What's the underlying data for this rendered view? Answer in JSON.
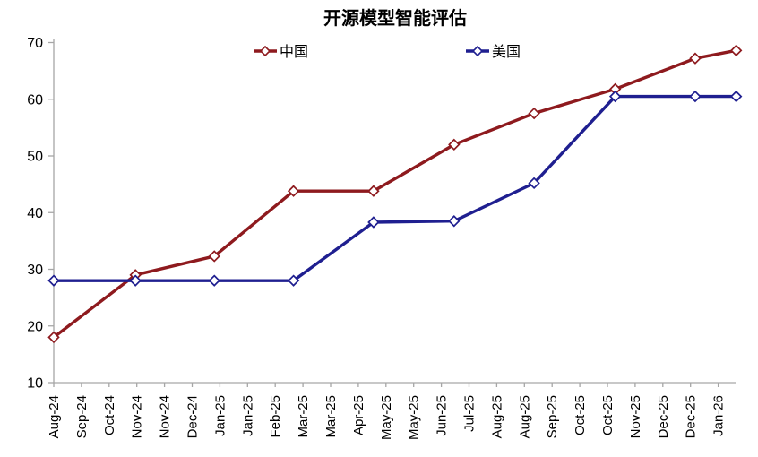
{
  "chart_data": {
    "type": "line",
    "title": "开源模型智能评估",
    "xlabel": "",
    "ylabel": "",
    "ylim": [
      10,
      70
    ],
    "y_ticks": [
      10,
      20,
      30,
      40,
      50,
      60,
      70
    ],
    "grid": false,
    "legend_position": "top",
    "axis_color": "#a6a6a6",
    "marker": "open-diamond",
    "x_unit": "tick-index (labels every ~3 weeks, Aug-24 to Jan-26)",
    "x_tick_labels": [
      "Aug-24",
      "Sep-24",
      "Oct-24",
      "Nov-24",
      "Nov-24",
      "Dec-24",
      "Jan-25",
      "Jan-25",
      "Feb-25",
      "Mar-25",
      "Mar-25",
      "Apr-25",
      "May-25",
      "May-25",
      "Jun-25",
      "Jul-25",
      "Aug-25",
      "Aug-25",
      "Sep-25",
      "Oct-25",
      "Oct-25",
      "Nov-25",
      "Dec-25",
      "Dec-25",
      "Jan-26"
    ],
    "series": [
      {
        "name": "中国",
        "color": "#8e1a1e",
        "points": [
          {
            "x": 0.0,
            "y": 18.0,
            "label": "Aug-24"
          },
          {
            "x": 2.95,
            "y": 29.0,
            "label": "Nov-24"
          },
          {
            "x": 5.8,
            "y": 32.3,
            "label": "Jan-25"
          },
          {
            "x": 8.66,
            "y": 43.8,
            "label": "Feb-25"
          },
          {
            "x": 11.55,
            "y": 43.8,
            "label": "Apr-25"
          },
          {
            "x": 14.46,
            "y": 52.0,
            "label": "Jun-25"
          },
          {
            "x": 17.35,
            "y": 57.5,
            "label": "Aug-25"
          },
          {
            "x": 20.28,
            "y": 61.8,
            "label": "Oct-25"
          },
          {
            "x": 23.17,
            "y": 67.2,
            "label": "Dec-25"
          },
          {
            "x": 24.65,
            "y": 68.6,
            "label": "Jan-26"
          }
        ]
      },
      {
        "name": "美国",
        "color": "#1f1f90",
        "points": [
          {
            "x": 0.0,
            "y": 28.0,
            "label": "Aug-24"
          },
          {
            "x": 2.95,
            "y": 28.0,
            "label": "Nov-24"
          },
          {
            "x": 5.8,
            "y": 28.0,
            "label": "Jan-25"
          },
          {
            "x": 8.66,
            "y": 28.0,
            "label": "Feb-25"
          },
          {
            "x": 11.55,
            "y": 38.3,
            "label": "Apr-25"
          },
          {
            "x": 14.46,
            "y": 38.5,
            "label": "Jun-25"
          },
          {
            "x": 17.35,
            "y": 45.2,
            "label": "Aug-25"
          },
          {
            "x": 20.28,
            "y": 60.5,
            "label": "Oct-25"
          },
          {
            "x": 23.17,
            "y": 60.5,
            "label": "Dec-25"
          },
          {
            "x": 24.65,
            "y": 60.5,
            "label": "Jan-26"
          }
        ]
      }
    ]
  }
}
